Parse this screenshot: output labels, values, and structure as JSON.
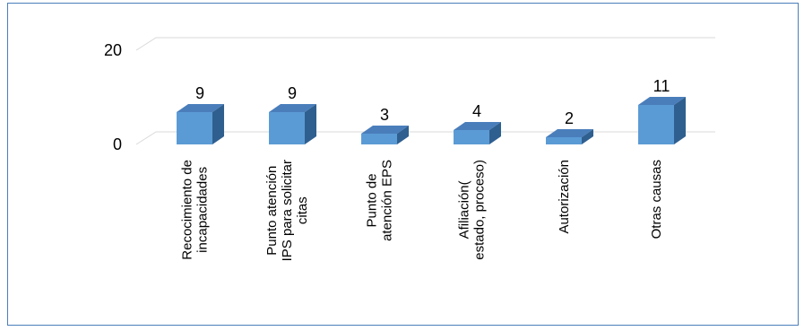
{
  "chart_data": {
    "type": "bar",
    "style": "3d-column",
    "categories": [
      [
        "Recocimiento de",
        "incapacidades"
      ],
      [
        "Punto atención",
        "IPS para solicitar",
        "citas"
      ],
      [
        "Punto de",
        "atención EPS"
      ],
      [
        "Afiliación(",
        "estado, proceso)"
      ],
      [
        "Autorización"
      ],
      [
        "Otras causas"
      ]
    ],
    "values": [
      9,
      9,
      3,
      4,
      2,
      11
    ],
    "ylim": [
      0,
      20
    ],
    "yticks": [
      0,
      20
    ],
    "grid": true,
    "legend": "none",
    "colors": {
      "bar_front": "#5b9bd5",
      "bar_side": "#2f5f8f",
      "bar_top": "#4a7ebb",
      "gridline": "#d9d9d9",
      "frame": "#4a7ebb"
    }
  }
}
